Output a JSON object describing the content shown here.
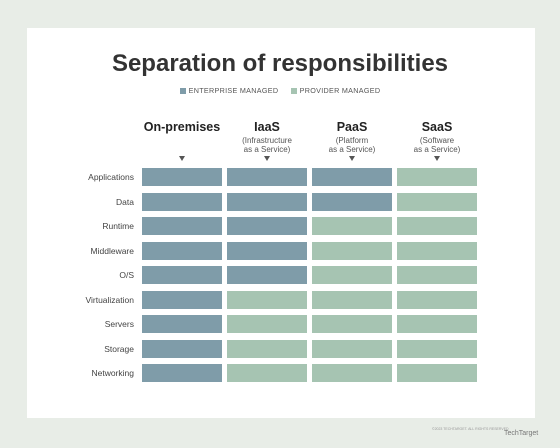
{
  "title": "Separation of responsibilities",
  "legend": [
    {
      "label": "ENTERPRISE MANAGED",
      "color": "#7f9ca9"
    },
    {
      "label": "PROVIDER MANAGED",
      "color": "#a6c4b2"
    }
  ],
  "columns": [
    {
      "name": "On-premises",
      "sub": ""
    },
    {
      "name": "IaaS",
      "sub": "(Infrastructure\nas a Service)"
    },
    {
      "name": "PaaS",
      "sub": "(Platform\nas a Service)"
    },
    {
      "name": "SaaS",
      "sub": "(Software\nas a Service)"
    }
  ],
  "rows": [
    {
      "label": "Applications",
      "cells": [
        "enterprise",
        "enterprise",
        "enterprise",
        "provider"
      ]
    },
    {
      "label": "Data",
      "cells": [
        "enterprise",
        "enterprise",
        "enterprise",
        "provider"
      ]
    },
    {
      "label": "Runtime",
      "cells": [
        "enterprise",
        "enterprise",
        "provider",
        "provider"
      ]
    },
    {
      "label": "Middleware",
      "cells": [
        "enterprise",
        "enterprise",
        "provider",
        "provider"
      ]
    },
    {
      "label": "O/S",
      "cells": [
        "enterprise",
        "enterprise",
        "provider",
        "provider"
      ]
    },
    {
      "label": "Virtualization",
      "cells": [
        "enterprise",
        "provider",
        "provider",
        "provider"
      ]
    },
    {
      "label": "Servers",
      "cells": [
        "enterprise",
        "provider",
        "provider",
        "provider"
      ]
    },
    {
      "label": "Storage",
      "cells": [
        "enterprise",
        "provider",
        "provider",
        "provider"
      ]
    },
    {
      "label": "Networking",
      "cells": [
        "enterprise",
        "provider",
        "provider",
        "provider"
      ]
    }
  ],
  "footer": "©2023 TECHTARGET. ALL RIGHTS RESERVED",
  "brand": "TechTarget"
}
